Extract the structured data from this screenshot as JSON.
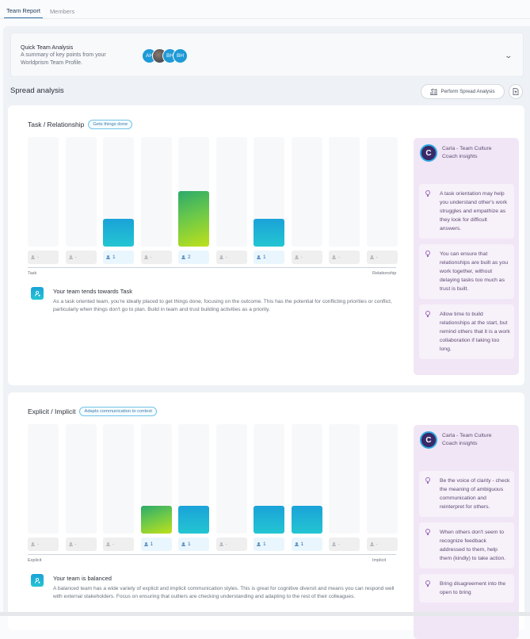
{
  "tabs": [
    {
      "label": "Team Report",
      "active": true
    },
    {
      "label": "Members",
      "active": false
    }
  ],
  "quick_analysis": {
    "title": "Quick Team Analysis",
    "subtitle": "A summary of key points from your Worldprism Team Profile.",
    "avatars": [
      {
        "initials": "AH",
        "type": "initials"
      },
      {
        "initials": "",
        "type": "photo"
      },
      {
        "initials": "BH",
        "type": "initials"
      },
      {
        "initials": "BH",
        "type": "initials"
      }
    ],
    "expand_icon": "chevron-down-icon"
  },
  "spread": {
    "title": "Spread analysis",
    "perform_button": "Perform Spread Analysis",
    "export_icon": "file-export-icon"
  },
  "sections": [
    {
      "title": "Task / Relationship",
      "badge": "Gets things done",
      "axis_left": "Task",
      "axis_right": "Relationship",
      "columns": [
        {
          "count": "-",
          "value": 0
        },
        {
          "count": "-",
          "value": 0
        },
        {
          "count": "1",
          "value": 1,
          "style": "blue"
        },
        {
          "count": "-",
          "value": 0
        },
        {
          "count": "2",
          "value": 2,
          "style": "green"
        },
        {
          "count": "-",
          "value": 0
        },
        {
          "count": "1",
          "value": 1,
          "style": "blue"
        },
        {
          "count": "-",
          "value": 0
        },
        {
          "count": "-",
          "value": 0
        },
        {
          "count": "-",
          "value": 0
        }
      ],
      "insight_title": "Your team tends towards Task",
      "insight_body": "As a task oriented team, you're ideally placed to get things done, focusing on the outcome. This has the potential for conflicting priorities or conflict, particularly when things don't go to plan. Build in team and trust building activities as a priority.",
      "coach_name": "Carla - Team Culture Coach insights",
      "tips": [
        "A task orientation may help you understand other's work struggles and empathize as they look for difficult answers.",
        "You can ensure that relationships are built as you work together, without delaying tasks too much as trust is built.",
        "Allow time to build relationships at the start, but remind others that it is a work collaboration if taking too long."
      ]
    },
    {
      "title": "Explicit / Implicit",
      "badge": "Adapts communication to context",
      "axis_left": "Explicit",
      "axis_right": "Implicit",
      "columns": [
        {
          "count": "-",
          "value": 0
        },
        {
          "count": "-",
          "value": 0
        },
        {
          "count": "-",
          "value": 0
        },
        {
          "count": "1",
          "value": 1,
          "style": "green"
        },
        {
          "count": "1",
          "value": 1,
          "style": "blue"
        },
        {
          "count": "-",
          "value": 0
        },
        {
          "count": "1",
          "value": 1,
          "style": "blue"
        },
        {
          "count": "1",
          "value": 1,
          "style": "blue"
        },
        {
          "count": "-",
          "value": 0
        },
        {
          "count": "-",
          "value": 0
        }
      ],
      "insight_title": "Your team is balanced",
      "insight_body": "A balanced team has a wide variety of explicit and implicit communication styles. This is great for cognitive diversit and means you can respond well with external stakeholders. Focus on ensuring that outliers are checking understanding and adapting to the rest of their colleagues.",
      "coach_name": "Carla - Team Culture Coach insights",
      "tips": [
        "Be the voice of clarity - check the meaning of ambiguous communication and reinterpret for others.",
        "When others don't seem to recognize feedback addressed to them, help them (kindly) to take action.",
        "Bring disagreement into the open to bring"
      ]
    }
  ],
  "chart_data": [
    {
      "type": "bar",
      "title": "Task / Relationship",
      "xlabel": "Task → Relationship",
      "categories": [
        "1",
        "2",
        "3",
        "4",
        "5",
        "6",
        "7",
        "8",
        "9",
        "10"
      ],
      "values": [
        0,
        0,
        1,
        0,
        2,
        0,
        1,
        0,
        0,
        0
      ],
      "ylim": [
        0,
        4
      ]
    },
    {
      "type": "bar",
      "title": "Explicit / Implicit",
      "xlabel": "Explicit → Implicit",
      "categories": [
        "1",
        "2",
        "3",
        "4",
        "5",
        "6",
        "7",
        "8",
        "9",
        "10"
      ],
      "values": [
        0,
        0,
        0,
        1,
        1,
        0,
        1,
        1,
        0,
        0
      ],
      "ylim": [
        0,
        4
      ]
    }
  ]
}
